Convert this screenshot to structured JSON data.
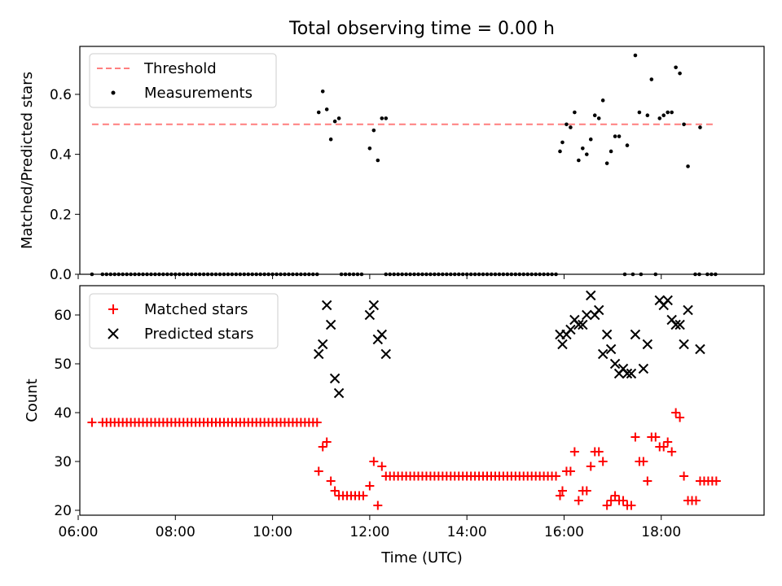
{
  "figure": {
    "title": "Total observing time = 0.00 h",
    "xlabel": "Time (UTC)"
  },
  "colors": {
    "threshold": "#ff7f7f",
    "measurement": "#000000",
    "matched": "#ff0000",
    "predicted": "#000000"
  },
  "chart_data": [
    {
      "type": "scatter",
      "panel": "top",
      "ylabel": "Matched/Predicted stars",
      "ylim": [
        0,
        0.76
      ],
      "xlim": [
        "06:02",
        "20:07"
      ],
      "x_ticks": [
        "06:00",
        "08:00",
        "10:00",
        "12:00",
        "14:00",
        "16:00",
        "18:00"
      ],
      "y_ticks": [
        "0.0",
        "0.2",
        "0.4",
        "0.6"
      ],
      "legend": {
        "placement": "upper-left",
        "entries": [
          "Threshold",
          "Measurements"
        ]
      },
      "threshold": {
        "name": "Threshold",
        "value": 0.5,
        "x_range": [
          "06:17",
          "19:08"
        ]
      },
      "series": [
        {
          "name": "Measurements",
          "zero_points_x": [
            "06:17",
            "06:30",
            "06:35",
            "06:40",
            "06:45",
            "06:50",
            "06:55",
            "07:00",
            "07:05",
            "07:10",
            "07:15",
            "07:20",
            "07:25",
            "07:30",
            "07:35",
            "07:40",
            "07:45",
            "07:50",
            "07:55",
            "08:00",
            "08:05",
            "08:10",
            "08:15",
            "08:20",
            "08:25",
            "08:30",
            "08:35",
            "08:40",
            "08:45",
            "08:50",
            "08:55",
            "09:00",
            "09:05",
            "09:10",
            "09:15",
            "09:20",
            "09:25",
            "09:30",
            "09:35",
            "09:40",
            "09:45",
            "09:50",
            "09:55",
            "10:00",
            "10:05",
            "10:10",
            "10:15",
            "10:20",
            "10:25",
            "10:30",
            "10:35",
            "10:40",
            "10:45",
            "10:50",
            "10:55",
            "11:25",
            "11:30",
            "11:35",
            "11:40",
            "11:45",
            "11:50",
            "12:20",
            "12:25",
            "12:30",
            "12:35",
            "12:40",
            "12:45",
            "12:50",
            "12:55",
            "13:00",
            "13:05",
            "13:10",
            "13:15",
            "13:20",
            "13:25",
            "13:30",
            "13:35",
            "13:40",
            "13:45",
            "13:50",
            "13:55",
            "14:00",
            "14:05",
            "14:10",
            "14:15",
            "14:20",
            "14:25",
            "14:30",
            "14:35",
            "14:40",
            "14:45",
            "14:50",
            "14:55",
            "15:00",
            "15:05",
            "15:10",
            "15:15",
            "15:20",
            "15:25",
            "15:30",
            "15:35",
            "15:40",
            "15:45",
            "15:50",
            "17:15",
            "17:25",
            "17:35",
            "17:53",
            "18:42",
            "18:47",
            "18:57",
            "19:02",
            "19:07"
          ],
          "points": [
            [
              "10:57",
              0.54
            ],
            [
              "11:02",
              0.61
            ],
            [
              "11:07",
              0.55
            ],
            [
              "11:12",
              0.45
            ],
            [
              "11:17",
              0.51
            ],
            [
              "11:22",
              0.52
            ],
            [
              "12:00",
              0.42
            ],
            [
              "12:05",
              0.48
            ],
            [
              "12:10",
              0.38
            ],
            [
              "12:15",
              0.52
            ],
            [
              "12:20",
              0.52
            ],
            [
              "15:55",
              0.41
            ],
            [
              "15:58",
              0.44
            ],
            [
              "16:03",
              0.5
            ],
            [
              "16:08",
              0.49
            ],
            [
              "16:13",
              0.54
            ],
            [
              "16:18",
              0.38
            ],
            [
              "16:23",
              0.42
            ],
            [
              "16:28",
              0.4
            ],
            [
              "16:33",
              0.45
            ],
            [
              "16:38",
              0.53
            ],
            [
              "16:43",
              0.52
            ],
            [
              "16:48",
              0.58
            ],
            [
              "16:53",
              0.37
            ],
            [
              "16:58",
              0.41
            ],
            [
              "17:03",
              0.46
            ],
            [
              "17:08",
              0.46
            ],
            [
              "17:18",
              0.43
            ],
            [
              "17:28",
              0.73
            ],
            [
              "17:33",
              0.54
            ],
            [
              "17:43",
              0.53
            ],
            [
              "17:48",
              0.65
            ],
            [
              "17:58",
              0.52
            ],
            [
              "18:03",
              0.53
            ],
            [
              "18:08",
              0.54
            ],
            [
              "18:13",
              0.54
            ],
            [
              "18:18",
              0.69
            ],
            [
              "18:23",
              0.67
            ],
            [
              "18:28",
              0.5
            ],
            [
              "18:33",
              0.36
            ],
            [
              "18:48",
              0.49
            ]
          ]
        }
      ]
    },
    {
      "type": "scatter",
      "panel": "bottom",
      "ylabel": "Count",
      "ylim": [
        19,
        66
      ],
      "xlim": [
        "06:02",
        "20:07"
      ],
      "x_ticks": [
        "06:00",
        "08:00",
        "10:00",
        "12:00",
        "14:00",
        "16:00",
        "18:00"
      ],
      "y_ticks": [
        "20",
        "30",
        "40",
        "50",
        "60"
      ],
      "legend": {
        "placement": "upper-left",
        "entries": [
          "Matched stars",
          "Predicted stars"
        ]
      },
      "series": [
        {
          "name": "Matched stars",
          "marker": "plus",
          "constant_runs": [
            {
              "value": 38,
              "x": [
                "06:17",
                "06:30",
                "06:35",
                "06:40",
                "06:45",
                "06:50",
                "06:55",
                "07:00",
                "07:05",
                "07:10",
                "07:15",
                "07:20",
                "07:25",
                "07:30",
                "07:35",
                "07:40",
                "07:45",
                "07:50",
                "07:55",
                "08:00",
                "08:05",
                "08:10",
                "08:15",
                "08:20",
                "08:25",
                "08:30",
                "08:35",
                "08:40",
                "08:45",
                "08:50",
                "08:55",
                "09:00",
                "09:05",
                "09:10",
                "09:15",
                "09:20",
                "09:25",
                "09:30",
                "09:35",
                "09:40",
                "09:45",
                "09:50",
                "09:55",
                "10:00",
                "10:05",
                "10:10",
                "10:15",
                "10:20",
                "10:25",
                "10:30",
                "10:35",
                "10:40",
                "10:45",
                "10:50",
                "10:55"
              ]
            },
            {
              "value": 27,
              "x": [
                "12:20",
                "12:25",
                "12:30",
                "12:35",
                "12:40",
                "12:45",
                "12:50",
                "12:55",
                "13:00",
                "13:05",
                "13:10",
                "13:15",
                "13:20",
                "13:25",
                "13:30",
                "13:35",
                "13:40",
                "13:45",
                "13:50",
                "13:55",
                "14:00",
                "14:05",
                "14:10",
                "14:15",
                "14:20",
                "14:25",
                "14:30",
                "14:35",
                "14:40",
                "14:45",
                "14:50",
                "14:55",
                "15:00",
                "15:05",
                "15:10",
                "15:15",
                "15:20",
                "15:25",
                "15:30",
                "15:35",
                "15:40",
                "15:45",
                "15:50"
              ]
            }
          ],
          "points": [
            [
              "10:57",
              28
            ],
            [
              "11:02",
              33
            ],
            [
              "11:07",
              34
            ],
            [
              "11:12",
              26
            ],
            [
              "11:17",
              24
            ],
            [
              "11:22",
              23
            ],
            [
              "11:27",
              23
            ],
            [
              "11:32",
              23
            ],
            [
              "11:37",
              23
            ],
            [
              "11:42",
              23
            ],
            [
              "11:47",
              23
            ],
            [
              "11:52",
              23
            ],
            [
              "12:00",
              25
            ],
            [
              "12:05",
              30
            ],
            [
              "12:10",
              21
            ],
            [
              "12:15",
              29
            ],
            [
              "15:55",
              23
            ],
            [
              "15:58",
              24
            ],
            [
              "16:03",
              28
            ],
            [
              "16:08",
              28
            ],
            [
              "16:13",
              32
            ],
            [
              "16:18",
              22
            ],
            [
              "16:23",
              24
            ],
            [
              "16:28",
              24
            ],
            [
              "16:33",
              29
            ],
            [
              "16:38",
              32
            ],
            [
              "16:43",
              32
            ],
            [
              "16:48",
              30
            ],
            [
              "16:53",
              21
            ],
            [
              "16:58",
              22
            ],
            [
              "17:03",
              23
            ],
            [
              "17:08",
              22
            ],
            [
              "17:13",
              22
            ],
            [
              "17:18",
              21
            ],
            [
              "17:23",
              21
            ],
            [
              "17:28",
              35
            ],
            [
              "17:33",
              30
            ],
            [
              "17:38",
              30
            ],
            [
              "17:43",
              26
            ],
            [
              "17:48",
              35
            ],
            [
              "17:53",
              35
            ],
            [
              "17:58",
              33
            ],
            [
              "18:03",
              33
            ],
            [
              "18:08",
              34
            ],
            [
              "18:13",
              32
            ],
            [
              "18:18",
              40
            ],
            [
              "18:23",
              39
            ],
            [
              "18:28",
              27
            ],
            [
              "18:33",
              22
            ],
            [
              "18:38",
              22
            ],
            [
              "18:43",
              22
            ],
            [
              "18:48",
              26
            ],
            [
              "18:53",
              26
            ],
            [
              "18:58",
              26
            ],
            [
              "19:03",
              26
            ],
            [
              "19:08",
              26
            ]
          ]
        },
        {
          "name": "Predicted stars",
          "marker": "x",
          "points": [
            [
              "10:57",
              52
            ],
            [
              "11:02",
              54
            ],
            [
              "11:07",
              62
            ],
            [
              "11:12",
              58
            ],
            [
              "11:17",
              47
            ],
            [
              "11:22",
              44
            ],
            [
              "12:00",
              60
            ],
            [
              "12:05",
              62
            ],
            [
              "12:10",
              55
            ],
            [
              "12:15",
              56
            ],
            [
              "12:20",
              52
            ],
            [
              "15:55",
              56
            ],
            [
              "15:58",
              54
            ],
            [
              "16:03",
              56
            ],
            [
              "16:08",
              57
            ],
            [
              "16:13",
              59
            ],
            [
              "16:18",
              58
            ],
            [
              "16:23",
              58
            ],
            [
              "16:28",
              60
            ],
            [
              "16:33",
              64
            ],
            [
              "16:38",
              60
            ],
            [
              "16:43",
              61
            ],
            [
              "16:48",
              52
            ],
            [
              "16:53",
              56
            ],
            [
              "16:58",
              53
            ],
            [
              "17:03",
              50
            ],
            [
              "17:08",
              48
            ],
            [
              "17:13",
              49
            ],
            [
              "17:18",
              48
            ],
            [
              "17:23",
              48
            ],
            [
              "17:28",
              56
            ],
            [
              "17:38",
              49
            ],
            [
              "17:43",
              54
            ],
            [
              "17:58",
              63
            ],
            [
              "18:03",
              62
            ],
            [
              "18:08",
              63
            ],
            [
              "18:13",
              59
            ],
            [
              "18:18",
              58
            ],
            [
              "18:23",
              58
            ],
            [
              "18:28",
              54
            ],
            [
              "18:33",
              61
            ],
            [
              "18:48",
              53
            ]
          ]
        }
      ]
    }
  ]
}
